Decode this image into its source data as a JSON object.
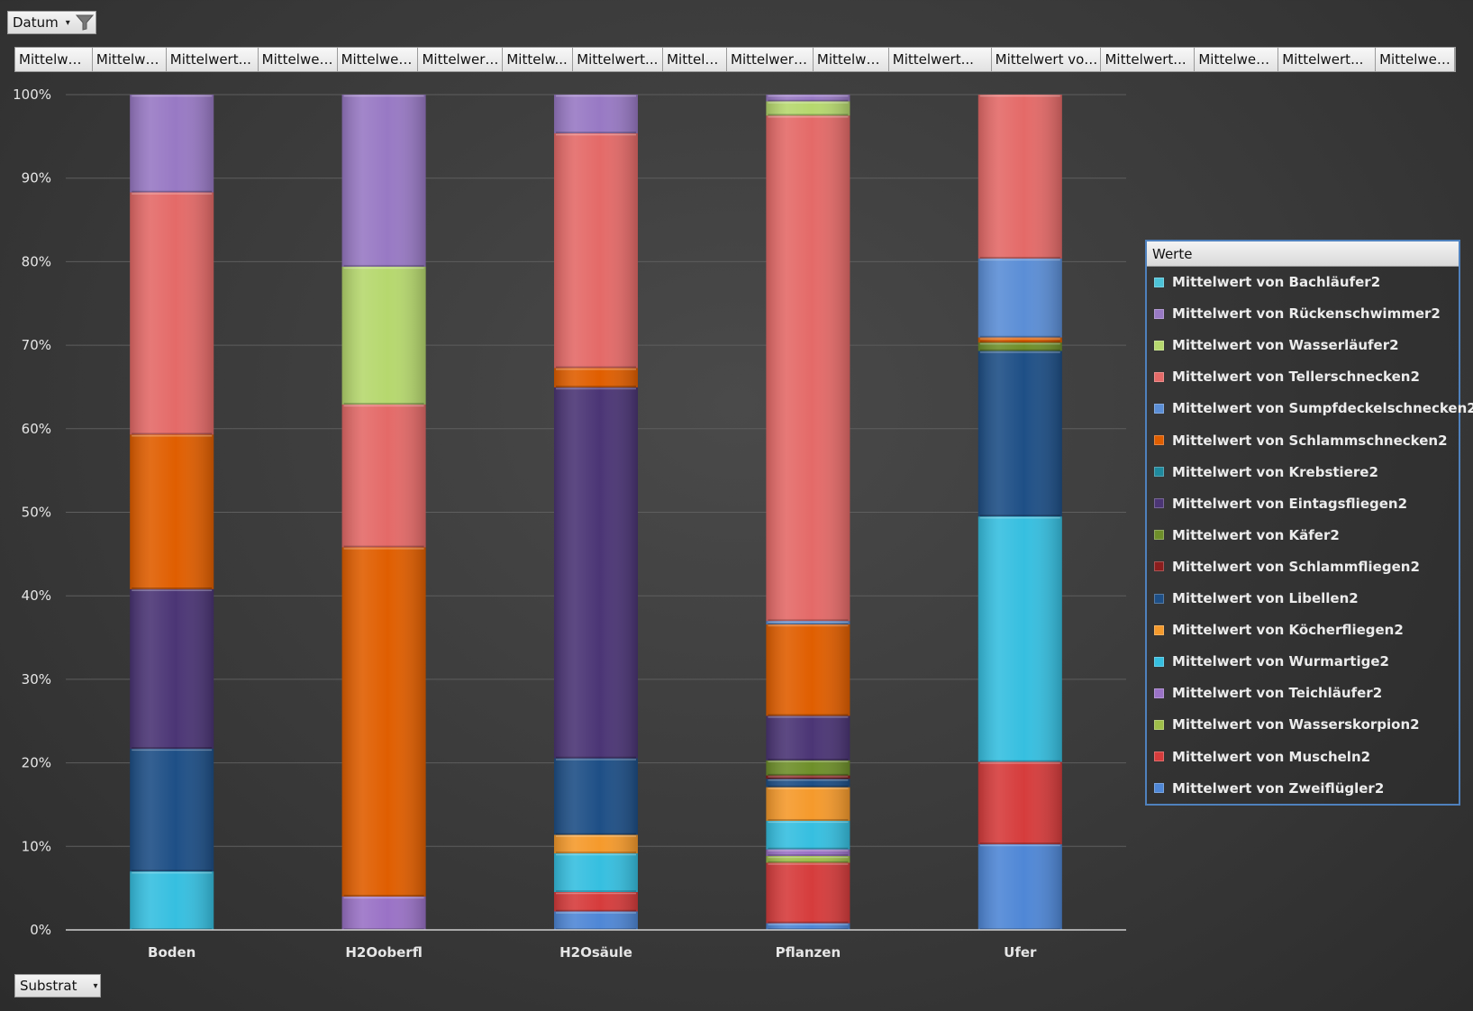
{
  "filters": {
    "top_field": "Datum",
    "axis_field": "Substrat"
  },
  "value_fields": [
    "Mittelwer...",
    "Mittelwe...",
    "Mittelwert...",
    "Mittelwer...",
    "Mittelwert...",
    "Mittelwert...",
    "Mittelw...",
    "Mittelwert...",
    "Mittelw...",
    "Mittelwert...",
    "Mittelwer...",
    "Mittelwert...",
    "Mittelwert von...",
    "Mittelwert...",
    "Mittelwert...",
    "Mittelwert...",
    "Mittelwer..."
  ],
  "legend": {
    "title": "Werte"
  },
  "chart_data": {
    "type": "bar",
    "stacked": "100%",
    "categories": [
      "Boden",
      "H2Ooberfl",
      "H2Osäule",
      "Pflanzen",
      "Ufer"
    ],
    "y_ticks": [
      "0%",
      "10%",
      "20%",
      "30%",
      "40%",
      "50%",
      "60%",
      "70%",
      "80%",
      "90%",
      "100%"
    ],
    "ylim": [
      0,
      100
    ],
    "grid": true,
    "legend_position": "right",
    "series": [
      {
        "name": "Mittelwert von Zweiflügler2",
        "color": "#4f87d6",
        "values": [
          0,
          0,
          2.2,
          0.8,
          10.2
        ]
      },
      {
        "name": "Mittelwert von Muscheln2",
        "color": "#d63c3c",
        "values": [
          0,
          0,
          2.3,
          7.2,
          9.8
        ]
      },
      {
        "name": "Mittelwert von Wasserskorpion2",
        "color": "#9fbf4a",
        "values": [
          0,
          0,
          0,
          0.8,
          0
        ]
      },
      {
        "name": "Mittelwert von Teichläufer2",
        "color": "#9a72c6",
        "values": [
          0,
          4.0,
          0,
          0.8,
          0
        ]
      },
      {
        "name": "Mittelwert von Wurmartige2",
        "color": "#36bfe0",
        "values": [
          7.0,
          0,
          4.6,
          3.4,
          29.2
        ]
      },
      {
        "name": "Mittelwert von Köcherfliegen2",
        "color": "#f59a2c",
        "values": [
          0,
          0,
          2.2,
          4.0,
          0
        ]
      },
      {
        "name": "Mittelwert von Libellen2",
        "color": "#1e4f86",
        "values": [
          14.7,
          0,
          9.1,
          1.0,
          19.7
        ]
      },
      {
        "name": "Mittelwert von Schlammfliegen2",
        "color": "#8b1d1d",
        "values": [
          0,
          0,
          0,
          0.4,
          0
        ]
      },
      {
        "name": "Mittelwert von Käfer2",
        "color": "#6e8f2a",
        "values": [
          0,
          0,
          0,
          1.8,
          1.0
        ]
      },
      {
        "name": "Mittelwert von Eintagsfliegen2",
        "color": "#4b3575",
        "values": [
          19.1,
          0,
          44.1,
          5.3,
          0
        ]
      },
      {
        "name": "Mittelwert von Krebstiere2",
        "color": "#1f8a9e",
        "values": [
          0,
          0,
          0,
          0,
          0
        ]
      },
      {
        "name": "Mittelwert von Schlammschnecken2",
        "color": "#e05e00",
        "values": [
          18.5,
          41.8,
          2.3,
          10.9,
          0.6
        ]
      },
      {
        "name": "Mittelwert von Sumpfdeckelschnecken2",
        "color": "#5b8ed6",
        "values": [
          0,
          0,
          0,
          0.4,
          9.4
        ]
      },
      {
        "name": "Mittelwert von Tellerschnecken2",
        "color": "#e46a68",
        "values": [
          29.0,
          17.1,
          27.9,
          60.2,
          19.5
        ]
      },
      {
        "name": "Mittelwert von Wasserläufer2",
        "color": "#b6d86e",
        "values": [
          0,
          16.5,
          0,
          1.7,
          0
        ]
      },
      {
        "name": "Mittelwert von Rückenschwimmer2",
        "color": "#9879c4",
        "values": [
          11.7,
          20.6,
          4.6,
          0.8,
          0
        ]
      },
      {
        "name": "Mittelwert von Bachläufer2",
        "color": "#4dc3d8",
        "values": [
          0,
          0,
          0,
          0,
          0
        ]
      }
    ]
  }
}
